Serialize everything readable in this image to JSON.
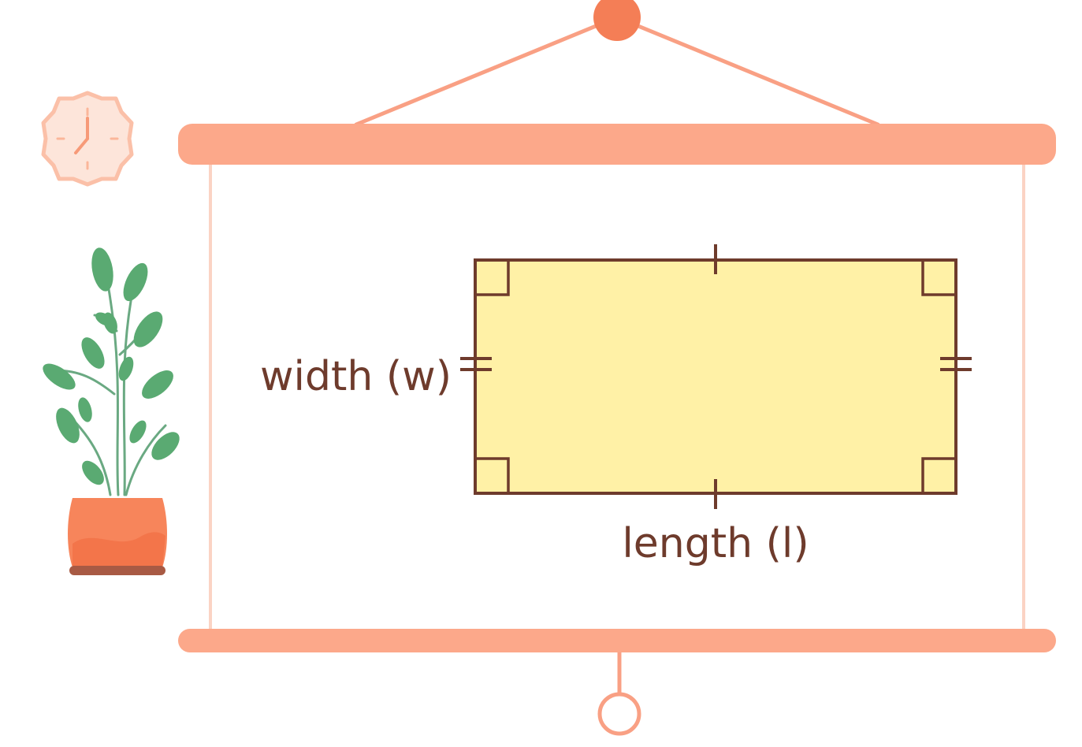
{
  "diagram": {
    "width_label": "width (w)",
    "length_label": "length (l)"
  },
  "icons": [
    "wall-clock-icon",
    "potted-plant-icon",
    "hanging-pin-icon",
    "pull-ring-icon"
  ],
  "colors": {
    "scroll_bar": "#fca88a",
    "hanging_cord": "#f9a084",
    "pin": "#f47e56",
    "rectangle_fill": "#fff1a6",
    "rectangle_stroke": "#6e3b2c",
    "label_text": "#6e3b2c",
    "leaf": "#5aaa72",
    "pot": "#f7855b",
    "clock_face": "#fde5da"
  }
}
